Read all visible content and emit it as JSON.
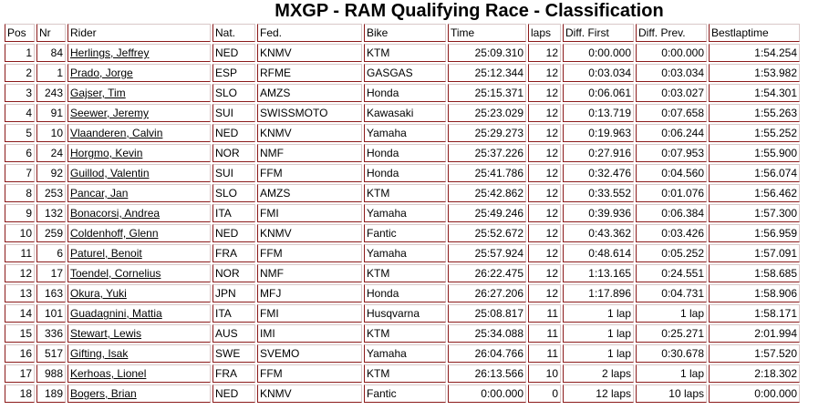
{
  "title": "MXGP - RAM Qualifying Race - Classification",
  "columns": [
    "Pos",
    "Nr",
    "Rider",
    "Nat.",
    "Fed.",
    "Bike",
    "Time",
    "laps",
    "Diff. First",
    "Diff. Prev.",
    "Bestlaptime"
  ],
  "rows": [
    {
      "pos": "1",
      "nr": "84",
      "rider": "Herlings, Jeffrey",
      "nat": "NED",
      "fed": "KNMV",
      "bike": "KTM",
      "time": "25:09.310",
      "laps": "12",
      "diff_first": "0:00.000",
      "diff_prev": "0:00.000",
      "best": "1:54.254"
    },
    {
      "pos": "2",
      "nr": "1",
      "rider": "Prado, Jorge",
      "nat": "ESP",
      "fed": "RFME",
      "bike": "GASGAS",
      "time": "25:12.344",
      "laps": "12",
      "diff_first": "0:03.034",
      "diff_prev": "0:03.034",
      "best": "1:53.982"
    },
    {
      "pos": "3",
      "nr": "243",
      "rider": "Gajser, Tim",
      "nat": "SLO",
      "fed": "AMZS",
      "bike": "Honda",
      "time": "25:15.371",
      "laps": "12",
      "diff_first": "0:06.061",
      "diff_prev": "0:03.027",
      "best": "1:54.301"
    },
    {
      "pos": "4",
      "nr": "91",
      "rider": "Seewer, Jeremy",
      "nat": "SUI",
      "fed": "SWISSMOTO",
      "bike": "Kawasaki",
      "time": "25:23.029",
      "laps": "12",
      "diff_first": "0:13.719",
      "diff_prev": "0:07.658",
      "best": "1:55.263"
    },
    {
      "pos": "5",
      "nr": "10",
      "rider": "Vlaanderen, Calvin",
      "nat": "NED",
      "fed": "KNMV",
      "bike": "Yamaha",
      "time": "25:29.273",
      "laps": "12",
      "diff_first": "0:19.963",
      "diff_prev": "0:06.244",
      "best": "1:55.252"
    },
    {
      "pos": "6",
      "nr": "24",
      "rider": "Horgmo, Kevin",
      "nat": "NOR",
      "fed": "NMF",
      "bike": "Honda",
      "time": "25:37.226",
      "laps": "12",
      "diff_first": "0:27.916",
      "diff_prev": "0:07.953",
      "best": "1:55.900"
    },
    {
      "pos": "7",
      "nr": "92",
      "rider": "Guillod, Valentin",
      "nat": "SUI",
      "fed": "FFM",
      "bike": "Honda",
      "time": "25:41.786",
      "laps": "12",
      "diff_first": "0:32.476",
      "diff_prev": "0:04.560",
      "best": "1:56.074"
    },
    {
      "pos": "8",
      "nr": "253",
      "rider": "Pancar, Jan",
      "nat": "SLO",
      "fed": "AMZS",
      "bike": "KTM",
      "time": "25:42.862",
      "laps": "12",
      "diff_first": "0:33.552",
      "diff_prev": "0:01.076",
      "best": "1:56.462"
    },
    {
      "pos": "9",
      "nr": "132",
      "rider": "Bonacorsi, Andrea",
      "nat": "ITA",
      "fed": "FMI",
      "bike": "Yamaha",
      "time": "25:49.246",
      "laps": "12",
      "diff_first": "0:39.936",
      "diff_prev": "0:06.384",
      "best": "1:57.300"
    },
    {
      "pos": "10",
      "nr": "259",
      "rider": "Coldenhoff, Glenn",
      "nat": "NED",
      "fed": "KNMV",
      "bike": "Fantic",
      "time": "25:52.672",
      "laps": "12",
      "diff_first": "0:43.362",
      "diff_prev": "0:03.426",
      "best": "1:56.959"
    },
    {
      "pos": "11",
      "nr": "6",
      "rider": "Paturel, Benoit",
      "nat": "FRA",
      "fed": "FFM",
      "bike": "Yamaha",
      "time": "25:57.924",
      "laps": "12",
      "diff_first": "0:48.614",
      "diff_prev": "0:05.252",
      "best": "1:57.091"
    },
    {
      "pos": "12",
      "nr": "17",
      "rider": "Toendel, Cornelius",
      "nat": "NOR",
      "fed": "NMF",
      "bike": "KTM",
      "time": "26:22.475",
      "laps": "12",
      "diff_first": "1:13.165",
      "diff_prev": "0:24.551",
      "best": "1:58.685"
    },
    {
      "pos": "13",
      "nr": "163",
      "rider": "Okura, Yuki",
      "nat": "JPN",
      "fed": "MFJ",
      "bike": "Honda",
      "time": "26:27.206",
      "laps": "12",
      "diff_first": "1:17.896",
      "diff_prev": "0:04.731",
      "best": "1:58.906"
    },
    {
      "pos": "14",
      "nr": "101",
      "rider": "Guadagnini, Mattia",
      "nat": "ITA",
      "fed": "FMI",
      "bike": "Husqvarna",
      "time": "25:08.817",
      "laps": "11",
      "diff_first": "1 lap",
      "diff_prev": "1 lap",
      "best": "1:58.171"
    },
    {
      "pos": "15",
      "nr": "336",
      "rider": "Stewart, Lewis",
      "nat": "AUS",
      "fed": "IMI",
      "bike": "KTM",
      "time": "25:34.088",
      "laps": "11",
      "diff_first": "1 lap",
      "diff_prev": "0:25.271",
      "best": "2:01.994"
    },
    {
      "pos": "16",
      "nr": "517",
      "rider": "Gifting, Isak",
      "nat": "SWE",
      "fed": "SVEMO",
      "bike": "Yamaha",
      "time": "26:04.766",
      "laps": "11",
      "diff_first": "1 lap",
      "diff_prev": "0:30.678",
      "best": "1:57.520"
    },
    {
      "pos": "17",
      "nr": "988",
      "rider": "Kerhoas, Lionel",
      "nat": "FRA",
      "fed": "FFM",
      "bike": "KTM",
      "time": "26:13.566",
      "laps": "10",
      "diff_first": "2 laps",
      "diff_prev": "1 lap",
      "best": "2:18.302"
    },
    {
      "pos": "18",
      "nr": "189",
      "rider": "Bogers, Brian",
      "nat": "NED",
      "fed": "KNMV",
      "bike": "Fantic",
      "time": "0:00.000",
      "laps": "0",
      "diff_first": "12 laps",
      "diff_prev": "10 laps",
      "best": "0:00.000"
    }
  ]
}
